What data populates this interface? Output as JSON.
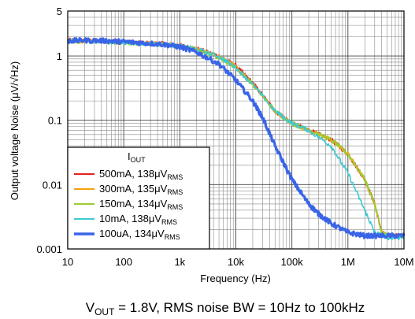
{
  "chart_data": {
    "type": "line",
    "xlabel": "Frequency (Hz)",
    "ylabel": "Output voltage Noise (μV/√Hz)",
    "x_scale": "log",
    "y_scale": "log",
    "xlim": [
      10,
      10000000
    ],
    "ylim": [
      0.001,
      5
    ],
    "x_ticks": [
      "10",
      "100",
      "1k",
      "10k",
      "100k",
      "1M",
      "10M"
    ],
    "y_ticks": [
      "5",
      "1",
      "0.1",
      "0.01",
      "0.001"
    ],
    "y_tick_values": [
      5,
      1,
      0.1,
      0.01,
      0.001
    ],
    "grid": true,
    "legend": {
      "title_main": "I",
      "title_sub": "OUT",
      "placement": "bottom-left"
    },
    "caption": {
      "v": "V",
      "v_sub": "OUT",
      "rest": " = 1.8V, RMS noise BW = 10Hz to 100kHz"
    },
    "series": [
      {
        "name_main": "500mA, 138",
        "name_unit": "μV",
        "name_sub": "RMS",
        "color": "#e8201e",
        "x": [
          10,
          20,
          50,
          100,
          200,
          500,
          1000,
          2000,
          5000,
          10000,
          20000,
          50000,
          100000,
          200000,
          500000,
          1000000,
          2000000,
          3000000,
          4000000,
          5000000,
          10000000
        ],
        "y": [
          1.75,
          1.75,
          1.7,
          1.65,
          1.6,
          1.55,
          1.45,
          1.3,
          1.0,
          0.7,
          0.38,
          0.14,
          0.09,
          0.07,
          0.05,
          0.03,
          0.012,
          0.005,
          0.0018,
          0.0016,
          0.0016
        ]
      },
      {
        "name_main": "300mA, 135",
        "name_unit": "μV",
        "name_sub": "RMS",
        "color": "#f5a010",
        "x": [
          10,
          20,
          50,
          100,
          200,
          500,
          1000,
          2000,
          5000,
          10000,
          20000,
          50000,
          100000,
          200000,
          500000,
          1000000,
          2000000,
          3000000,
          4000000,
          5000000,
          10000000
        ],
        "y": [
          1.72,
          1.72,
          1.68,
          1.63,
          1.58,
          1.52,
          1.42,
          1.28,
          0.98,
          0.68,
          0.37,
          0.14,
          0.09,
          0.07,
          0.05,
          0.03,
          0.012,
          0.005,
          0.0018,
          0.0016,
          0.0016
        ]
      },
      {
        "name_main": "150mA, 134",
        "name_unit": "μV",
        "name_sub": "RMS",
        "color": "#9acd32",
        "x": [
          10,
          20,
          50,
          100,
          200,
          500,
          1000,
          2000,
          5000,
          10000,
          20000,
          50000,
          100000,
          200000,
          500000,
          1000000,
          2000000,
          3000000,
          4000000,
          5000000,
          10000000
        ],
        "y": [
          1.7,
          1.7,
          1.66,
          1.62,
          1.57,
          1.5,
          1.4,
          1.26,
          0.96,
          0.66,
          0.36,
          0.14,
          0.09,
          0.07,
          0.05,
          0.03,
          0.012,
          0.005,
          0.0018,
          0.0016,
          0.0016
        ]
      },
      {
        "name_main": "10mA, 138",
        "name_unit": "μV",
        "name_sub": "RMS",
        "color": "#3ec9d0",
        "x": [
          10,
          20,
          50,
          100,
          200,
          500,
          1000,
          2000,
          5000,
          10000,
          20000,
          50000,
          100000,
          200000,
          500000,
          1000000,
          2000000,
          3000000,
          5000000,
          10000000
        ],
        "y": [
          1.7,
          1.7,
          1.65,
          1.62,
          1.58,
          1.52,
          1.42,
          1.28,
          0.98,
          0.66,
          0.36,
          0.14,
          0.09,
          0.07,
          0.04,
          0.015,
          0.004,
          0.0018,
          0.0015,
          0.0015
        ]
      },
      {
        "name_main": "100uA, 134",
        "name_unit": "μV",
        "name_sub": "RMS",
        "color": "#3a64e8",
        "x": [
          10,
          20,
          50,
          100,
          200,
          500,
          1000,
          2000,
          5000,
          10000,
          20000,
          30000,
          50000,
          100000,
          200000,
          300000,
          500000,
          1000000,
          2000000,
          5000000,
          10000000
        ],
        "y": [
          1.72,
          1.75,
          1.72,
          1.66,
          1.6,
          1.52,
          1.38,
          1.15,
          0.75,
          0.42,
          0.2,
          0.11,
          0.04,
          0.012,
          0.005,
          0.0035,
          0.0025,
          0.0018,
          0.0016,
          0.0016,
          0.0016
        ]
      }
    ]
  }
}
